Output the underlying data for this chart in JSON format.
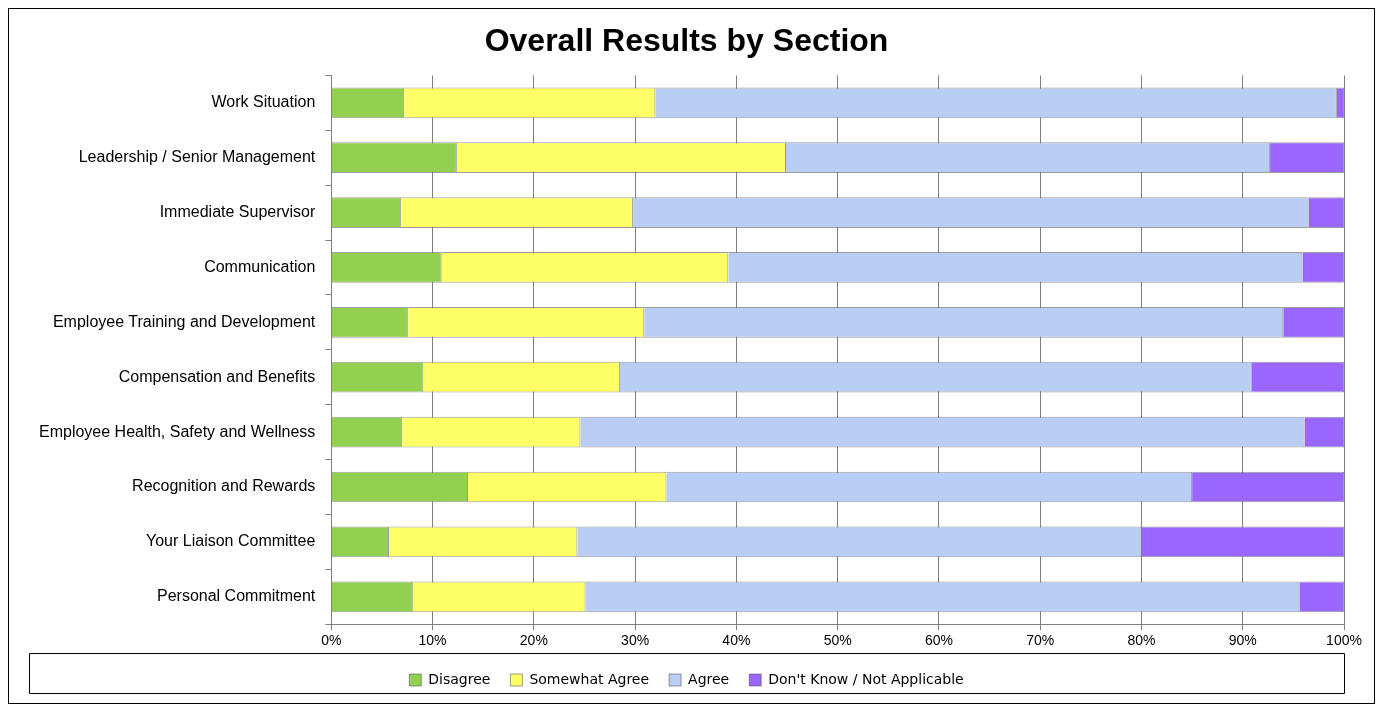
{
  "chart_data": {
    "type": "bar",
    "orientation": "horizontal",
    "stacked": true,
    "title": "Overall Results by Section",
    "categories": [
      "Work Situation",
      "Leadership / Senior Management",
      "Immediate Supervisor",
      "Communication",
      "Employee Training and Development",
      "Compensation and Benefits",
      "Employee Health, Safety and Wellness",
      "Recognition and Rewards",
      "Your Liaison Committee",
      "Personal Commitment"
    ],
    "series": [
      {
        "name": "Disagree",
        "color": "#92d050",
        "values": [
          7.2,
          12.4,
          6.9,
          10.9,
          7.6,
          9.1,
          7.0,
          13.5,
          5.7,
          8.1
        ]
      },
      {
        "name": "Somewhat Agree",
        "color": "#ffff66",
        "values": [
          24.8,
          32.5,
          22.9,
          28.3,
          23.3,
          19.4,
          17.6,
          19.6,
          18.6,
          17.0
        ]
      },
      {
        "name": "Agree",
        "color": "#b9cdf5",
        "values": [
          67.3,
          47.8,
          66.7,
          56.7,
          63.1,
          62.4,
          71.5,
          51.9,
          55.7,
          70.5
        ]
      },
      {
        "name": "Don't Know / Not Applicable",
        "color": "#9966ff",
        "values": [
          0.7,
          7.3,
          3.5,
          4.1,
          6.0,
          9.1,
          3.9,
          15.0,
          20.0,
          4.4
        ]
      }
    ],
    "xlim": [
      0,
      100
    ],
    "xticks": [
      {
        "value": 0,
        "label": "0%"
      },
      {
        "value": 10,
        "label": "10%"
      },
      {
        "value": 20,
        "label": "20%"
      },
      {
        "value": 30,
        "label": "30%"
      },
      {
        "value": 40,
        "label": "40%"
      },
      {
        "value": 50,
        "label": "50%"
      },
      {
        "value": 60,
        "label": "60%"
      },
      {
        "value": 70,
        "label": "70%"
      },
      {
        "value": 80,
        "label": "80%"
      },
      {
        "value": 90,
        "label": "90%"
      },
      {
        "value": 100,
        "label": "100%"
      }
    ],
    "grid": "x",
    "legend": "bottom"
  }
}
